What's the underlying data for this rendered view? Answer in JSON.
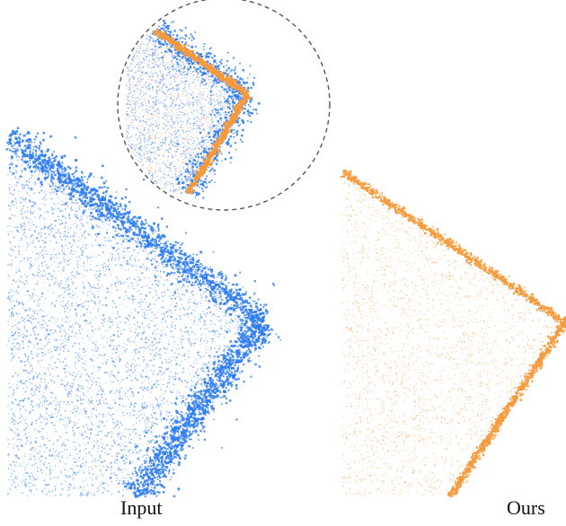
{
  "captions": {
    "left": "Input",
    "right": "Ours"
  },
  "colors": {
    "input_points": "#2d7bf2",
    "output_points": "#f59a3b",
    "zoom_circle": "#555555",
    "background": "#ffffff"
  },
  "panels": [
    {
      "name": "input",
      "description_icon": "point-cloud-noisy"
    },
    {
      "name": "ours",
      "description_icon": "point-cloud-clean"
    }
  ]
}
